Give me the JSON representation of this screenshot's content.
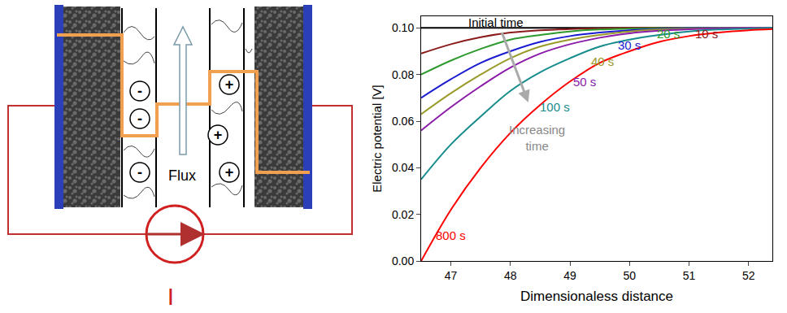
{
  "diagram": {
    "anions": [
      "-",
      "-",
      "-"
    ],
    "cations": [
      "+",
      "+",
      "+"
    ],
    "flux_label": "Flux",
    "current_label": "I"
  },
  "chart_data": {
    "type": "line",
    "xlabel": "Dimensionaless distance",
    "ylabel": "Electric potential [V]",
    "xlim": [
      46.5,
      52.4
    ],
    "ylim": [
      0,
      0.105
    ],
    "xticks": [
      47,
      48,
      49,
      50,
      51,
      52
    ],
    "yticks": [
      {
        "value": 0,
        "label": "0.00"
      },
      {
        "value": 0.02,
        "label": "0.02"
      },
      {
        "value": 0.04,
        "label": "0.04"
      },
      {
        "value": 0.06,
        "label": "0.06"
      },
      {
        "value": 0.08,
        "label": "0.08"
      },
      {
        "value": 0.1,
        "label": "0.10"
      }
    ],
    "grid": false,
    "x": [
      46.5,
      47,
      47.5,
      48,
      48.5,
      49,
      49.5,
      50,
      50.5,
      51,
      51.5,
      52,
      52.4
    ],
    "series": [
      {
        "name": "Initial time",
        "color": "#000000",
        "values": [
          0.1,
          0.1,
          0.1,
          0.1,
          0.1,
          0.1,
          0.1,
          0.1,
          0.1,
          0.1,
          0.1,
          0.1,
          0.1
        ]
      },
      {
        "name": "10 s",
        "color": "#8b1a1a",
        "values": [
          0.089,
          0.093,
          0.096,
          0.098,
          0.099,
          0.0995,
          0.0998,
          0.1,
          0.1,
          0.1,
          0.1,
          0.1,
          0.1
        ]
      },
      {
        "name": "20 s",
        "color": "#2e9a2e",
        "values": [
          0.08,
          0.086,
          0.091,
          0.095,
          0.097,
          0.0985,
          0.0993,
          0.0997,
          0.0999,
          0.1,
          0.1,
          0.1,
          0.1
        ]
      },
      {
        "name": "30 s",
        "color": "#1a1ad0",
        "values": [
          0.07,
          0.078,
          0.085,
          0.09,
          0.094,
          0.0965,
          0.098,
          0.099,
          0.0996,
          0.0999,
          0.1,
          0.1,
          0.1
        ]
      },
      {
        "name": "40 s",
        "color": "#9a9a2a",
        "values": [
          0.063,
          0.072,
          0.08,
          0.087,
          0.092,
          0.095,
          0.097,
          0.0985,
          0.0993,
          0.0997,
          0.0999,
          0.1,
          0.1
        ]
      },
      {
        "name": "50 s",
        "color": "#8a1aa8",
        "values": [
          0.056,
          0.066,
          0.075,
          0.083,
          0.089,
          0.093,
          0.0958,
          0.0977,
          0.0988,
          0.0994,
          0.0998,
          0.1,
          0.1
        ]
      },
      {
        "name": "100 s",
        "color": "#178c8c",
        "values": [
          0.035,
          0.05,
          0.062,
          0.073,
          0.081,
          0.087,
          0.092,
          0.095,
          0.097,
          0.0985,
          0.0993,
          0.0997,
          0.1
        ]
      },
      {
        "name": "800 s",
        "color": "#ff0000",
        "values": [
          0.0,
          0.022,
          0.04,
          0.055,
          0.067,
          0.077,
          0.085,
          0.09,
          0.094,
          0.0965,
          0.098,
          0.099,
          0.0995
        ]
      }
    ],
    "annotations": [
      {
        "text": "Initial time",
        "x": 47.75,
        "y": 0.1025,
        "color": "#000000"
      },
      {
        "text": "10 s",
        "x": 51.3,
        "y": 0.0975,
        "color": "#8b1a1a"
      },
      {
        "text": "20 s",
        "x": 50.65,
        "y": 0.0975,
        "color": "#2e9a2e"
      },
      {
        "text": "30 s",
        "x": 50.0,
        "y": 0.0925,
        "color": "#1a1ad0"
      },
      {
        "text": "40 s",
        "x": 49.55,
        "y": 0.0855,
        "color": "#9a9a2a"
      },
      {
        "text": "50 s",
        "x": 49.25,
        "y": 0.077,
        "color": "#8a1aa8"
      },
      {
        "text": "100 s",
        "x": 48.75,
        "y": 0.066,
        "color": "#178c8c"
      },
      {
        "text": "800 s",
        "x": 47.0,
        "y": 0.011,
        "color": "#ff0000"
      },
      {
        "text": "Increasing time",
        "x": 48.45,
        "y": 0.053,
        "color": "#888888"
      }
    ]
  }
}
